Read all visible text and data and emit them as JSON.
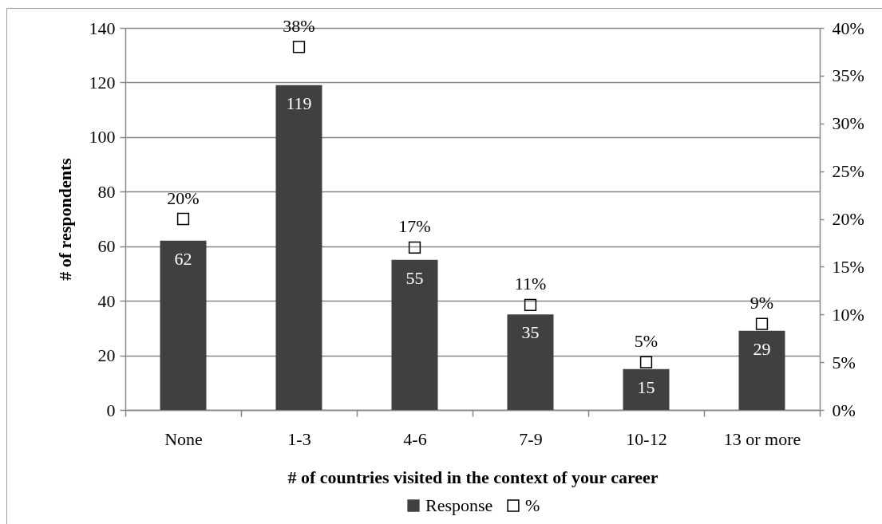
{
  "chart_data": {
    "type": "bar",
    "categories": [
      "None",
      "1-3",
      "4-6",
      "7-9",
      "10-12",
      "13 or more"
    ],
    "series": [
      {
        "name": "Response",
        "color": "#404040",
        "values": [
          62,
          119,
          55,
          35,
          15,
          29
        ]
      },
      {
        "name": "%",
        "type": "scatter",
        "axis": "y2",
        "marker": "square",
        "color": "#000000",
        "values": [
          20,
          38,
          17,
          11,
          5,
          9
        ],
        "value_labels": [
          "20%",
          "38%",
          "17%",
          "11%",
          "5%",
          "9%"
        ]
      }
    ],
    "xlabel": "# of countries visited in the context of your career",
    "ylabel": "# of respondents",
    "ylim": [
      0,
      140
    ],
    "yticks": [
      0,
      20,
      40,
      60,
      80,
      100,
      120,
      140
    ],
    "y2lim": [
      0,
      40
    ],
    "y2ticks": [
      {
        "value": 0,
        "label": "0%"
      },
      {
        "value": 5,
        "label": "5%"
      },
      {
        "value": 10,
        "label": "10%"
      },
      {
        "value": 15,
        "label": "15%"
      },
      {
        "value": 20,
        "label": "20%"
      },
      {
        "value": 25,
        "label": "25%"
      },
      {
        "value": 30,
        "label": "30%"
      },
      {
        "value": 35,
        "label": "35%"
      },
      {
        "value": 40,
        "label": "40%"
      }
    ],
    "grid": "y",
    "legend": "bottom",
    "data_labels": true
  }
}
